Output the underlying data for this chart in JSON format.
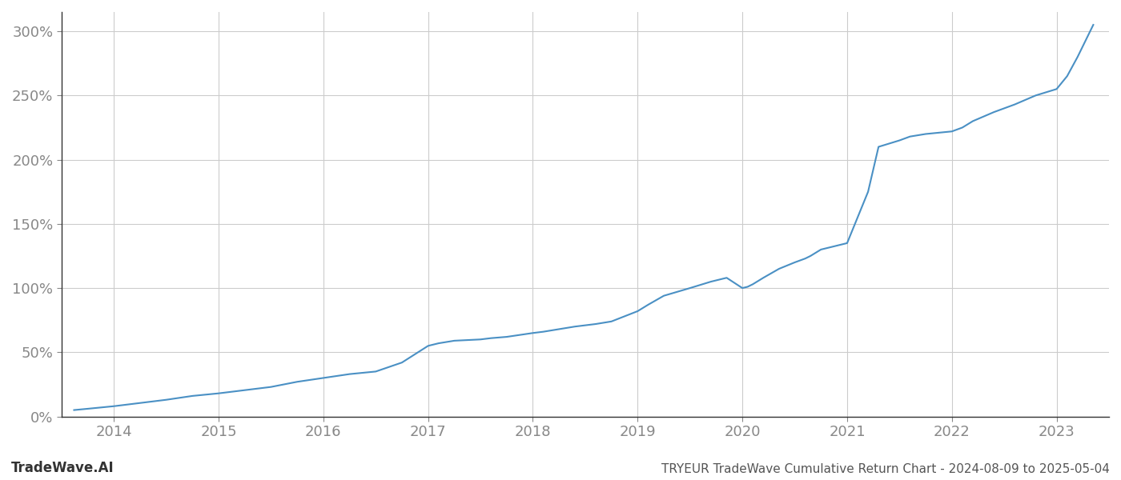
{
  "title": "TRYEUR TradeWave Cumulative Return Chart - 2024-08-09 to 2025-05-04",
  "watermark": "TradeWave.AI",
  "line_color": "#4a90c4",
  "background_color": "#ffffff",
  "grid_color": "#cccccc",
  "x_years": [
    2013.62,
    2013.75,
    2014.0,
    2014.2,
    2014.5,
    2014.75,
    2015.0,
    2015.2,
    2015.5,
    2015.75,
    2016.0,
    2016.25,
    2016.5,
    2016.75,
    2017.0,
    2017.1,
    2017.25,
    2017.5,
    2017.6,
    2017.75,
    2018.0,
    2018.1,
    2018.25,
    2018.4,
    2018.5,
    2018.6,
    2018.75,
    2019.0,
    2019.1,
    2019.25,
    2019.5,
    2019.7,
    2019.85,
    2020.0,
    2020.05,
    2020.1,
    2020.2,
    2020.35,
    2020.5,
    2020.6,
    2020.65,
    2020.75,
    2021.0,
    2021.1,
    2021.2,
    2021.3,
    2021.5,
    2021.6,
    2021.75,
    2022.0,
    2022.1,
    2022.2,
    2022.4,
    2022.6,
    2022.8,
    2023.0,
    2023.1,
    2023.2,
    2023.35
  ],
  "y_values": [
    5,
    6,
    8,
    10,
    13,
    16,
    18,
    20,
    23,
    27,
    30,
    33,
    35,
    42,
    55,
    57,
    59,
    60,
    61,
    62,
    65,
    66,
    68,
    70,
    71,
    72,
    74,
    82,
    87,
    94,
    100,
    105,
    108,
    100,
    101,
    103,
    108,
    115,
    120,
    123,
    125,
    130,
    135,
    155,
    175,
    210,
    215,
    218,
    220,
    222,
    225,
    230,
    237,
    243,
    250,
    255,
    265,
    280,
    305
  ],
  "xlim": [
    2013.5,
    2023.5
  ],
  "ylim": [
    0,
    315
  ],
  "xticks": [
    2014,
    2015,
    2016,
    2017,
    2018,
    2019,
    2020,
    2021,
    2022,
    2023
  ],
  "yticks": [
    0,
    50,
    100,
    150,
    200,
    250,
    300
  ],
  "ytick_labels": [
    "0%",
    "50%",
    "100%",
    "150%",
    "200%",
    "250%",
    "300%"
  ],
  "line_width": 1.5,
  "title_fontsize": 11,
  "watermark_fontsize": 12,
  "tick_fontsize": 13,
  "tick_color": "#888888",
  "left_spine_color": "#333333",
  "bottom_spine_color": "#333333"
}
